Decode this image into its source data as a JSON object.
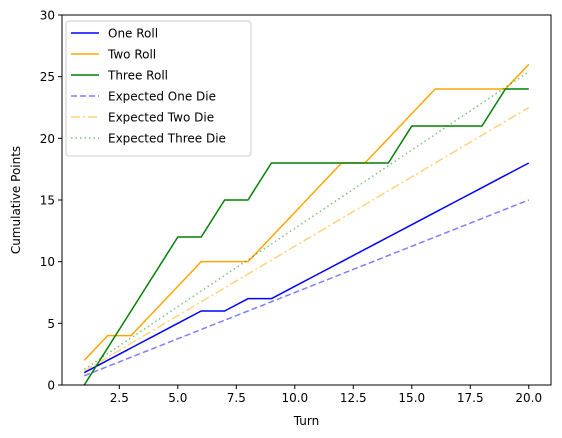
{
  "chart_data": {
    "type": "line",
    "title": "",
    "xlabel": "Turn",
    "ylabel": "Cumulative Points",
    "xlim": [
      0.05,
      20.95
    ],
    "ylim": [
      0,
      30
    ],
    "x_ticks": [
      2.5,
      5.0,
      7.5,
      10.0,
      12.5,
      15.0,
      17.5,
      20.0
    ],
    "x_tick_labels": [
      "2.5",
      "5.0",
      "7.5",
      "10.0",
      "12.5",
      "15.0",
      "17.5",
      "20.0"
    ],
    "y_ticks": [
      0,
      5,
      10,
      15,
      20,
      25,
      30
    ],
    "y_tick_labels": [
      "0",
      "5",
      "10",
      "15",
      "20",
      "25",
      "30"
    ],
    "grid": false,
    "legend_position": "top-left",
    "x": [
      1,
      2,
      3,
      4,
      5,
      6,
      7,
      8,
      9,
      10,
      11,
      12,
      13,
      14,
      15,
      16,
      17,
      18,
      19,
      20
    ],
    "series": [
      {
        "name": "One Roll",
        "color": "#0000ff",
        "dash": "solid",
        "opacity": 1,
        "values": [
          1,
          2,
          3,
          4,
          5,
          6,
          6,
          7,
          7,
          8,
          9,
          10,
          11,
          12,
          13,
          14,
          15,
          16,
          17,
          18
        ]
      },
      {
        "name": "Two Roll",
        "color": "#ffa500",
        "dash": "solid",
        "opacity": 1,
        "values": [
          2,
          4,
          4,
          6,
          8,
          10,
          10,
          10,
          12,
          14,
          16,
          18,
          18,
          20,
          22,
          24,
          24,
          24,
          24,
          26
        ]
      },
      {
        "name": "Three Roll",
        "color": "#008000",
        "dash": "solid",
        "opacity": 1,
        "values": [
          0,
          3,
          6,
          9,
          12,
          12,
          15,
          15,
          18,
          18,
          18,
          18,
          18,
          18,
          21,
          21,
          21,
          21,
          24,
          24
        ]
      },
      {
        "name": "Expected One Die",
        "color": "#0000ff",
        "dash": "dashed",
        "opacity": 0.5,
        "values": [
          0.75,
          1.5,
          2.25,
          3,
          3.75,
          4.5,
          5.25,
          6,
          6.75,
          7.5,
          8.25,
          9,
          9.75,
          10.5,
          11.25,
          12,
          12.75,
          13.5,
          14.25,
          15
        ]
      },
      {
        "name": "Expected Two Die",
        "color": "#ffa500",
        "dash": "dashdot",
        "opacity": 0.5,
        "values": [
          1.125,
          2.25,
          3.375,
          4.5,
          5.625,
          6.75,
          7.875,
          9,
          10.125,
          11.25,
          12.375,
          13.5,
          14.625,
          15.75,
          16.875,
          18,
          19.125,
          20.25,
          21.375,
          22.5
        ]
      },
      {
        "name": "Expected Three Die",
        "color": "#008000",
        "dash": "dotted",
        "opacity": 0.5,
        "values": [
          1.27,
          2.54,
          3.81,
          5.08,
          6.35,
          7.62,
          8.89,
          10.16,
          11.43,
          12.7,
          13.97,
          15.24,
          16.51,
          17.78,
          19.05,
          20.32,
          21.59,
          22.86,
          24.13,
          25.4
        ]
      }
    ]
  }
}
